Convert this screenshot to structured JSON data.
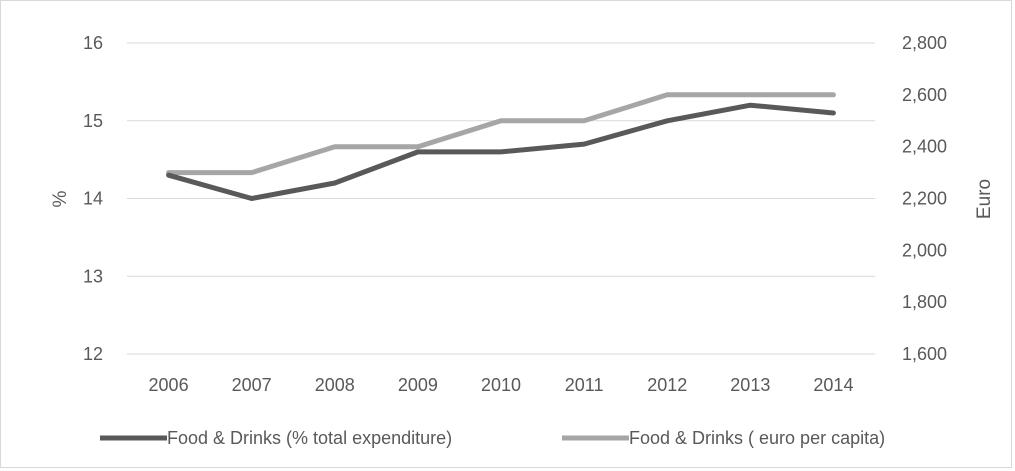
{
  "chart_data": {
    "type": "line",
    "title": "",
    "categories": [
      "2006",
      "2007",
      "2008",
      "2009",
      "2010",
      "2011",
      "2012",
      "2013",
      "2014"
    ],
    "ylabel_left": "%",
    "ylabel_right": "Euro",
    "ylim_left": [
      12,
      16
    ],
    "ylim_right": [
      1600,
      2800
    ],
    "yticks_left": [
      12,
      13,
      14,
      15,
      16
    ],
    "yticks_right": [
      1600,
      1800,
      2000,
      2200,
      2400,
      2600,
      2800
    ],
    "yticks_right_labels": [
      "1,600",
      "1,800",
      "2,000",
      "2,200",
      "2,400",
      "2,600",
      "2,800"
    ],
    "grid": true,
    "legend_position": "bottom",
    "series": [
      {
        "name": "Food & Drinks (% total expenditure)",
        "axis": "left",
        "color": "#595959",
        "values": [
          14.3,
          14.0,
          14.2,
          14.6,
          14.6,
          14.7,
          15.0,
          15.2,
          15.1
        ]
      },
      {
        "name": "Food & Drinks ( euro per capita)",
        "axis": "right",
        "color": "#a6a6a6",
        "values": [
          2300,
          2300,
          2400,
          2400,
          2500,
          2500,
          2600,
          2600,
          2600
        ]
      }
    ]
  }
}
